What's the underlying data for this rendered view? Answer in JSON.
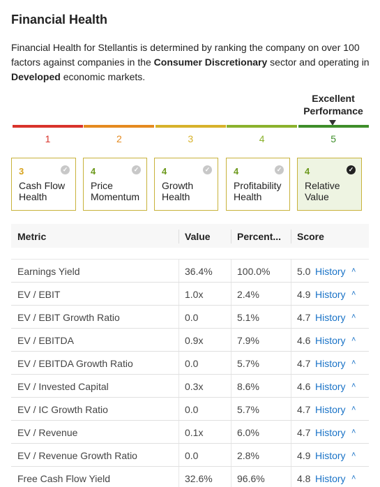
{
  "header": {
    "title": "Financial Health"
  },
  "description": {
    "part1": "Financial Health for Stellantis is determined by ranking the company on over 100 factors against companies in the ",
    "sector": "Consumer Discretionary",
    "part2": " sector and operating in ",
    "market": "Developed",
    "part3": " economic markets."
  },
  "performance": {
    "label_line1": "Excellent",
    "label_line2": "Performance",
    "scale": [
      {
        "num": "1",
        "color": "#d9332b"
      },
      {
        "num": "2",
        "color": "#e58a1f"
      },
      {
        "num": "3",
        "color": "#d7b22b"
      },
      {
        "num": "4",
        "color": "#8bb22d"
      },
      {
        "num": "5",
        "color": "#3e8e2a"
      }
    ]
  },
  "cards": [
    {
      "score": "3",
      "line1": "Cash Flow",
      "line2": "Health",
      "score_color": "#d7a21b"
    },
    {
      "score": "4",
      "line1": "Price",
      "line2": "Momentum",
      "score_color": "#6e9a1e"
    },
    {
      "score": "4",
      "line1": "Growth",
      "line2": "Health",
      "score_color": "#6e9a1e"
    },
    {
      "score": "4",
      "line1": "Profitability",
      "line2": "Health",
      "score_color": "#6e9a1e"
    },
    {
      "score": "4",
      "line1": "Relative",
      "line2": "Value",
      "score_color": "#6e9a1e",
      "active": true
    }
  ],
  "table": {
    "headers": {
      "metric": "Metric",
      "value": "Value",
      "percentile": "Percent...",
      "score": "Score"
    },
    "history_label": "History",
    "rows": [
      {
        "metric": "Earnings Yield",
        "value": "36.4%",
        "percentile": "100.0%",
        "score": "5.0"
      },
      {
        "metric": "EV / EBIT",
        "value": "1.0x",
        "percentile": "2.4%",
        "score": "4.9"
      },
      {
        "metric": "EV / EBIT Growth Ratio",
        "value": "0.0",
        "percentile": "5.1%",
        "score": "4.7"
      },
      {
        "metric": "EV / EBITDA",
        "value": "0.9x",
        "percentile": "7.9%",
        "score": "4.6"
      },
      {
        "metric": "EV / EBITDA Growth Ratio",
        "value": "0.0",
        "percentile": "5.7%",
        "score": "4.7"
      },
      {
        "metric": "EV / Invested Capital",
        "value": "0.3x",
        "percentile": "8.6%",
        "score": "4.6"
      },
      {
        "metric": "EV / IC Growth Ratio",
        "value": "0.0",
        "percentile": "5.7%",
        "score": "4.7"
      },
      {
        "metric": "EV / Revenue",
        "value": "0.1x",
        "percentile": "6.0%",
        "score": "4.7"
      },
      {
        "metric": "EV / Revenue Growth Ratio",
        "value": "0.0",
        "percentile": "2.8%",
        "score": "4.9"
      },
      {
        "metric": "Free Cash Flow Yield",
        "value": "32.6%",
        "percentile": "96.6%",
        "score": "4.8"
      }
    ]
  }
}
